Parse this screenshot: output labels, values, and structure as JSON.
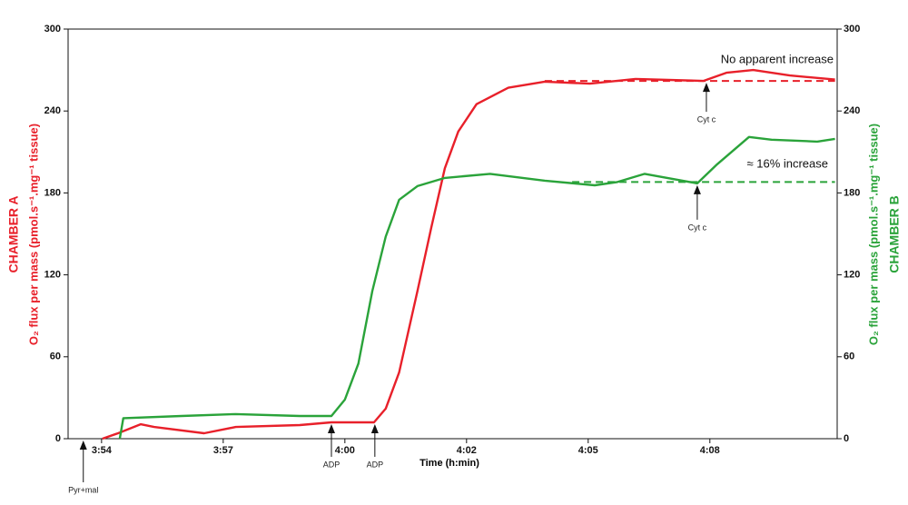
{
  "chart_data": {
    "type": "line",
    "x_label": "Time (h:min)",
    "y_label_chamber": "CHAMBER A",
    "y_label": "O₂ flux per mass  (pmol.s⁻¹.mg⁻¹ tissue)",
    "y2_label_chamber": "CHAMBER B",
    "y2_label": "O₂ flux per mass  (pmol.s⁻¹.mg⁻¹ tissue)",
    "xlim": [
      233.23,
      250.93
    ],
    "xticks": [
      {
        "value": 234,
        "label": "3:54"
      },
      {
        "value": 236.8,
        "label": "3:57"
      },
      {
        "value": 239.6,
        "label": "4:00"
      },
      {
        "value": 242.4,
        "label": "4:02"
      },
      {
        "value": 245.2,
        "label": "4:05"
      },
      {
        "value": 248,
        "label": "4:08"
      }
    ],
    "ylim": [
      0,
      300
    ],
    "yticks": [
      0,
      60,
      120,
      180,
      240,
      300
    ],
    "y2lim": [
      0,
      300
    ],
    "y2ticks": [
      0,
      60,
      120,
      180,
      240,
      300
    ],
    "series": [
      {
        "name": "CHAMBER A",
        "color": "#e8202a",
        "x": [
          234.02,
          234.38,
          234.9,
          235.21,
          236.36,
          237.09,
          238.56,
          239.29,
          240.27,
          240.54,
          240.85,
          241.27,
          241.59,
          241.9,
          242.21,
          242.63,
          243.36,
          244.2,
          245.24,
          246.29,
          247.85,
          248.38,
          249.0,
          249.84,
          250.88
        ],
        "values": [
          0,
          4,
          10.6,
          8.6,
          4,
          8.6,
          10,
          12,
          12,
          22,
          48.6,
          108,
          155,
          198,
          225,
          245,
          257,
          261.5,
          260,
          263.5,
          262,
          268,
          270,
          266,
          263
        ]
      },
      {
        "name": "CHAMBER B",
        "color": "#2aa33a",
        "axis": "y2",
        "x": [
          234.42,
          234.5,
          235.84,
          237.09,
          238.56,
          239.29,
          239.6,
          239.91,
          240.23,
          240.54,
          240.85,
          241.27,
          241.9,
          242.94,
          244.2,
          245.35,
          245.87,
          246.5,
          247.02,
          247.71,
          248.17,
          248.9,
          249.42,
          250.47,
          250.88
        ],
        "values": [
          0,
          15,
          16.6,
          18,
          16.6,
          16.6,
          28.6,
          55,
          108,
          148,
          175,
          185,
          191,
          194,
          189,
          185.6,
          188,
          194,
          191,
          187,
          201,
          221,
          219,
          217.6,
          219.6
        ]
      }
    ],
    "reference_lines": [
      {
        "color": "#e8202a",
        "value": 262,
        "x": [
          244.2,
          250.88
        ]
      },
      {
        "color": "#2aa33a",
        "value": 188,
        "axis": "y2",
        "x": [
          244.83,
          250.88
        ]
      }
    ],
    "events": [
      {
        "label": "Pyr+mal",
        "x": 233.58,
        "y": 0
      },
      {
        "label": "ADP",
        "x": 239.29,
        "y": 12
      },
      {
        "label": "ADP",
        "x": 240.29,
        "y": 12
      },
      {
        "label": "Cyt c",
        "x": 247.92,
        "y": 262
      },
      {
        "label": "Cyt c",
        "x": 247.71,
        "y": 187
      }
    ],
    "annotations": [
      "No apparent increase",
      "≈ 16% increase"
    ]
  }
}
